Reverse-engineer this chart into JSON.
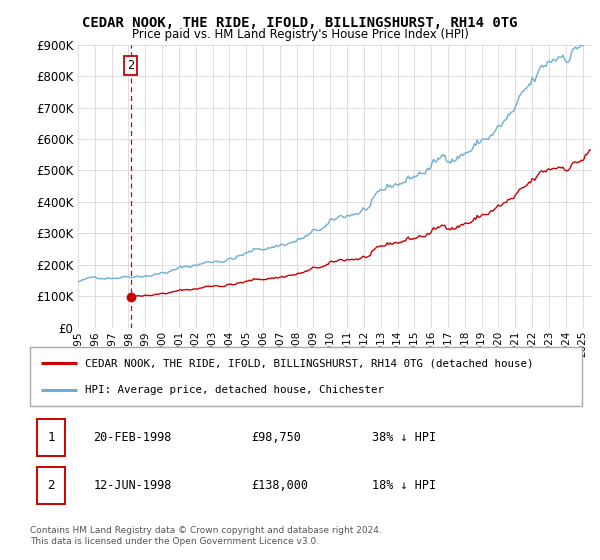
{
  "title": "CEDAR NOOK, THE RIDE, IFOLD, BILLINGSHURST, RH14 0TG",
  "subtitle": "Price paid vs. HM Land Registry's House Price Index (HPI)",
  "ylim": [
    0,
    900000
  ],
  "xlim_start": 1995.0,
  "xlim_end": 2025.5,
  "legend_line1": "CEDAR NOOK, THE RIDE, IFOLD, BILLINGSHURST, RH14 0TG (detached house)",
  "legend_line2": "HPI: Average price, detached house, Chichester",
  "transaction1_date": "20-FEB-1998",
  "transaction1_price": "£98,750",
  "transaction1_hpi": "38% ↓ HPI",
  "transaction2_date": "12-JUN-1998",
  "transaction2_price": "£138,000",
  "transaction2_hpi": "18% ↓ HPI",
  "footer": "Contains HM Land Registry data © Crown copyright and database right 2024.\nThis data is licensed under the Open Government Licence v3.0.",
  "line_color_hpi": "#6baed6",
  "line_color_prop": "#cc0000",
  "marker_color_prop": "#cc0000",
  "dashed_line_color": "#cc0000",
  "annotation_box_color": "#cc0000",
  "background_color": "#ffffff",
  "grid_color": "#dddddd"
}
